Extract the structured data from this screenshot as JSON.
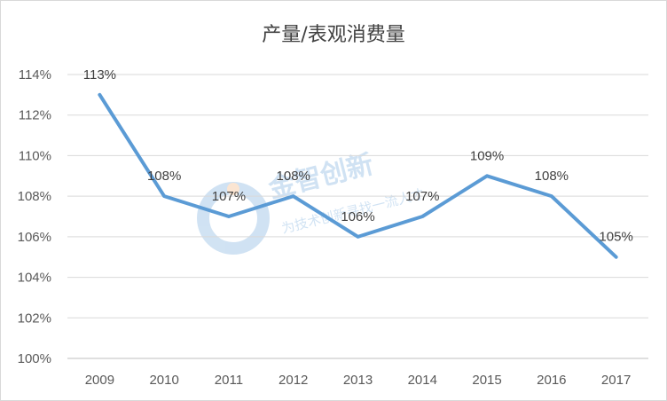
{
  "chart_data": {
    "type": "line",
    "title": "产量/表观消费量",
    "categories": [
      "2009",
      "2010",
      "2011",
      "2012",
      "2013",
      "2014",
      "2015",
      "2016",
      "2017"
    ],
    "series": [
      {
        "values": [
          113,
          108,
          107,
          108,
          106,
          107,
          109,
          108,
          105
        ],
        "labels": [
          "113%",
          "108%",
          "107%",
          "108%",
          "106%",
          "107%",
          "109%",
          "108%",
          "105%"
        ],
        "color": "#5b9bd5"
      }
    ],
    "y_ticks": [
      100,
      102,
      104,
      106,
      108,
      110,
      112,
      114
    ],
    "y_tick_labels": [
      "100%",
      "102%",
      "104%",
      "106%",
      "108%",
      "110%",
      "112%",
      "114%"
    ],
    "ylim": [
      100,
      114
    ],
    "grid": "horizontal",
    "legend": "none",
    "xlabel": "",
    "ylabel": ""
  },
  "watermark": {
    "main_text": "金智创新",
    "sub_text": "为技术创新寻找一流人才",
    "color": "#5b9bd5"
  }
}
